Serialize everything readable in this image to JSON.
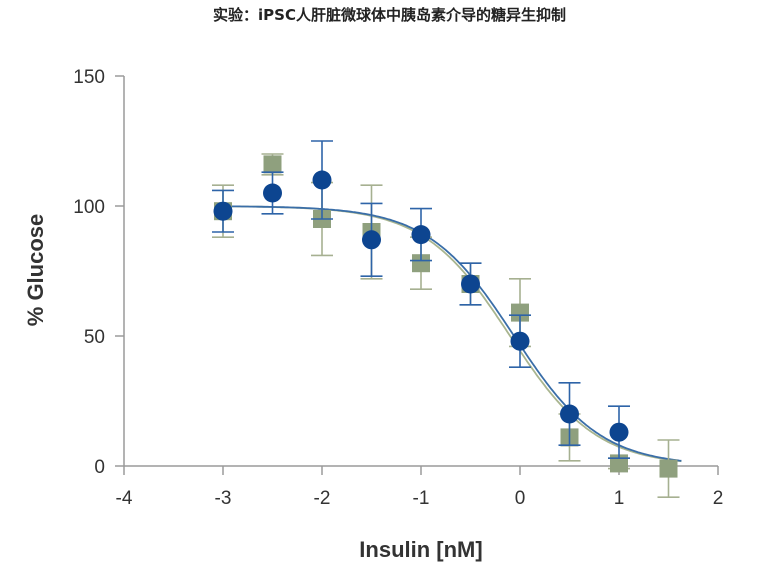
{
  "chart_data": {
    "type": "scatter",
    "title": "实验：iPSC人肝脏微球体中胰岛素介导的糖异生抑制",
    "xlabel": "Insulin [nM]",
    "ylabel": "% Glucose",
    "xlim": [
      -4,
      2
    ],
    "ylim": [
      0,
      150
    ],
    "x_ticks": [
      "-4",
      "-3",
      "-2",
      "-1",
      "0",
      "1",
      "2"
    ],
    "y_ticks": [
      "0",
      "50",
      "100",
      "150"
    ],
    "grid": false,
    "legend": "none",
    "series": [
      {
        "marker": "square",
        "color": "#8fa07e",
        "points": [
          {
            "x": -3.0,
            "y": 98,
            "err": 10
          },
          {
            "x": -2.5,
            "y": 116,
            "err": 4
          },
          {
            "x": -2.0,
            "y": 95,
            "err": 14
          },
          {
            "x": -1.5,
            "y": 90,
            "err": 18
          },
          {
            "x": -1.0,
            "y": 78,
            "err": 10
          },
          {
            "x": -0.5,
            "y": 70,
            "err": 8
          },
          {
            "x": 0.0,
            "y": 59,
            "err": 13
          },
          {
            "x": 0.5,
            "y": 11,
            "err": 9
          },
          {
            "x": 1.0,
            "y": 1,
            "err": 2
          },
          {
            "x": 1.5,
            "y": -1,
            "err": 11
          }
        ],
        "fit_color": "#a9b58f",
        "fit": {
          "top": 100,
          "bottom": 0,
          "logIC50": -0.1,
          "hill": -1.0
        }
      },
      {
        "marker": "circle",
        "color": "#0d4590",
        "points": [
          {
            "x": -3.0,
            "y": 98,
            "err": 8
          },
          {
            "x": -2.5,
            "y": 105,
            "err": 8
          },
          {
            "x": -2.0,
            "y": 110,
            "err": 15
          },
          {
            "x": -1.5,
            "y": 87,
            "err": 14
          },
          {
            "x": -1.0,
            "y": 89,
            "err": 10
          },
          {
            "x": -0.5,
            "y": 70,
            "err": 8
          },
          {
            "x": 0.0,
            "y": 48,
            "err": 10
          },
          {
            "x": 0.5,
            "y": 20,
            "err": 12
          },
          {
            "x": 1.0,
            "y": 13,
            "err": 10
          }
        ],
        "fit_color": "#3a6ea8",
        "fit": {
          "top": 100,
          "bottom": 0,
          "logIC50": -0.06,
          "hill": -1.0
        }
      }
    ]
  }
}
